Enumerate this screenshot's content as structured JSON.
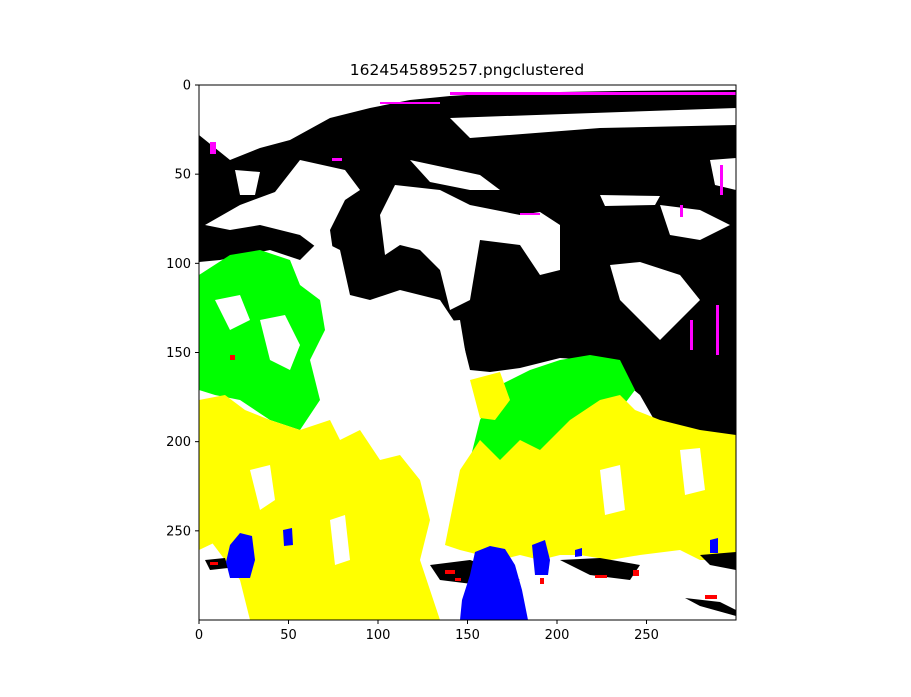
{
  "chart_data": {
    "type": "heatmap",
    "title": "1624545895257.pngclustered",
    "xlabel": "",
    "ylabel": "",
    "image_size": [
      300,
      300
    ],
    "xlim": [
      0,
      300
    ],
    "ylim": [
      300,
      0
    ],
    "y_inverted": true,
    "x_ticks": [
      0,
      50,
      100,
      150,
      200,
      250
    ],
    "y_ticks": [
      0,
      50,
      100,
      150,
      200,
      250
    ],
    "grid": false,
    "legend": "none",
    "cluster_colors": {
      "sky": "#ffffff",
      "dark": "#000000",
      "foliage_green": "#00ff00",
      "foliage_yellow": "#ffff00",
      "shadow_blue": "#0000ff",
      "edge_magenta": "#ff00ff",
      "edge_red": "#ff0000"
    }
  }
}
